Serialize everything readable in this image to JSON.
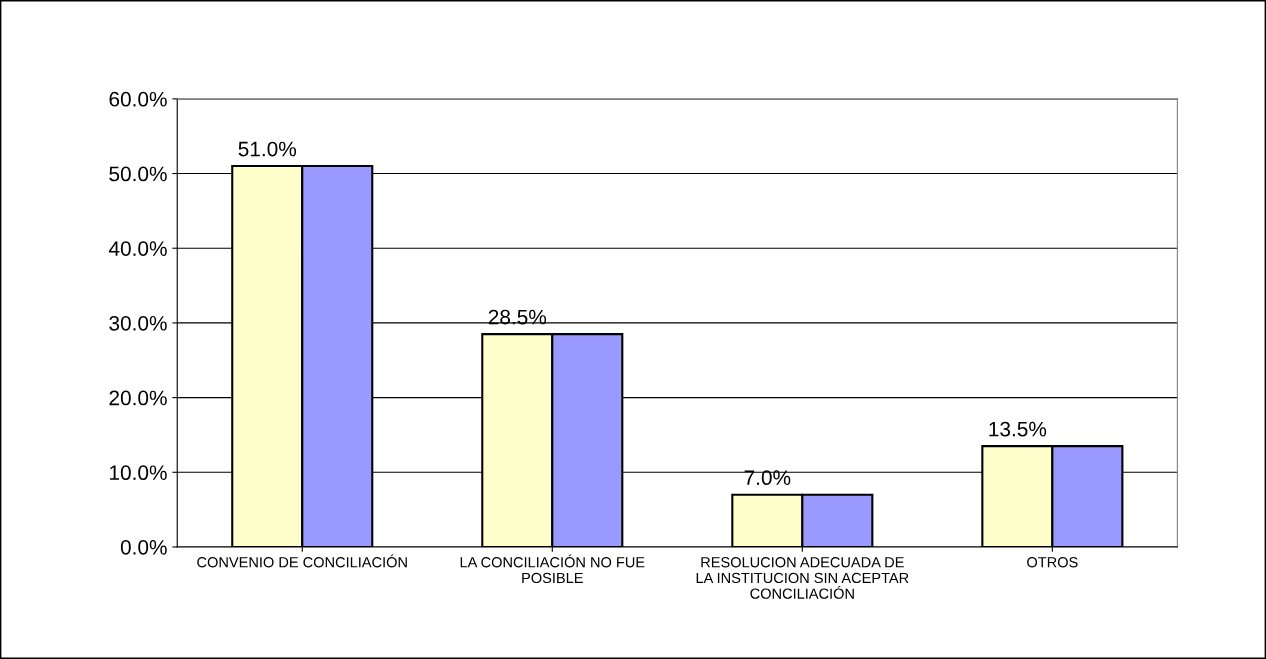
{
  "chart_data": {
    "type": "bar",
    "categories": [
      "CONVENIO DE CONCILIACIÓN",
      "LA CONCILIACIÓN NO FUE\nPOSIBLE",
      "RESOLUCION ADECUADA DE\nLA INSTITUCION SIN ACEPTAR\nCONCILIACIÓN",
      "OTROS"
    ],
    "series": [
      {
        "color": "#ffffcc",
        "values": [
          51.0,
          28.5,
          7.0,
          13.5
        ],
        "value_labels": [
          "51.0%",
          "28.5%",
          "7.0%",
          "13.5%"
        ]
      },
      {
        "color": "#9999ff",
        "values": [
          51.0,
          28.5,
          7.0,
          13.5
        ]
      }
    ],
    "ylim": [
      0,
      60
    ],
    "yticks": [
      {
        "value": 0,
        "label": "0.0%"
      },
      {
        "value": 10,
        "label": "10.0%"
      },
      {
        "value": 20,
        "label": "20.0%"
      },
      {
        "value": 30,
        "label": "30.0%"
      },
      {
        "value": 40,
        "label": "40.0%"
      },
      {
        "value": 50,
        "label": "50.0%"
      },
      {
        "value": 60,
        "label": "60.0%"
      }
    ],
    "grid": "y"
  }
}
